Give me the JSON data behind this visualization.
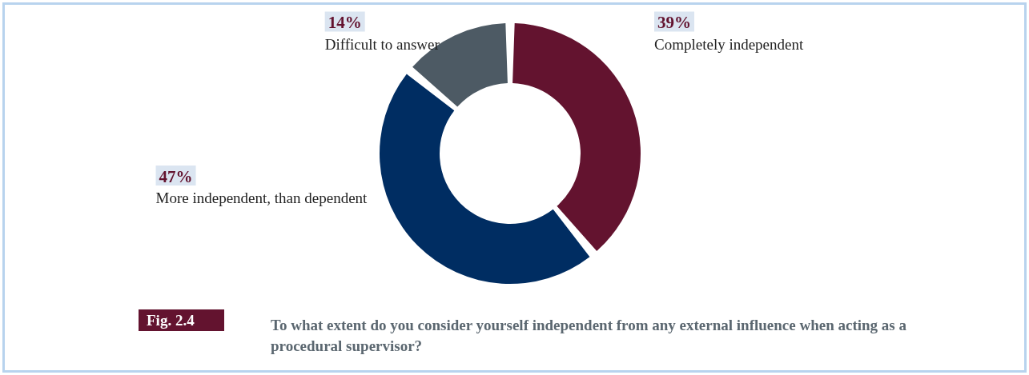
{
  "chart_data": {
    "type": "donut",
    "title": "To what extent do you consider yourself independent from any external influence when acting as a procedural supervisor?",
    "annotations": [
      "Fig. 2.4"
    ],
    "categories": [
      "Completely independent",
      "More independent, than dependent",
      "Difficult to answer"
    ],
    "values": [
      39,
      47,
      14
    ],
    "colors": [
      "#63132f",
      "#002d62",
      "#4d5a64"
    ],
    "value_labels": [
      "39%",
      "47%",
      "14%"
    ],
    "legend": false
  }
}
